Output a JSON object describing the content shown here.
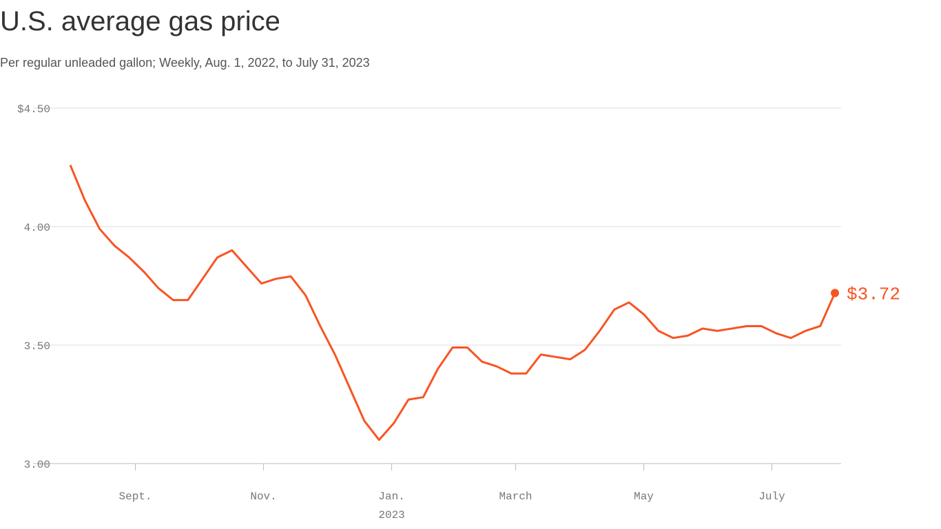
{
  "chart_data": {
    "type": "line",
    "title": "U.S. average gas price",
    "subtitle": "Per regular unleaded gallon; Weekly, Aug. 1, 2022, to July 31, 2023",
    "x": [
      "2022-08-01",
      "2022-08-08",
      "2022-08-15",
      "2022-08-22",
      "2022-08-29",
      "2022-09-05",
      "2022-09-12",
      "2022-09-19",
      "2022-09-26",
      "2022-10-03",
      "2022-10-10",
      "2022-10-17",
      "2022-10-24",
      "2022-10-31",
      "2022-11-07",
      "2022-11-14",
      "2022-11-21",
      "2022-11-28",
      "2022-12-05",
      "2022-12-12",
      "2022-12-19",
      "2022-12-26",
      "2023-01-02",
      "2023-01-09",
      "2023-01-16",
      "2023-01-23",
      "2023-01-30",
      "2023-02-06",
      "2023-02-13",
      "2023-02-20",
      "2023-02-27",
      "2023-03-06",
      "2023-03-13",
      "2023-03-20",
      "2023-03-27",
      "2023-04-03",
      "2023-04-10",
      "2023-04-17",
      "2023-04-24",
      "2023-05-01",
      "2023-05-08",
      "2023-05-15",
      "2023-05-22",
      "2023-05-29",
      "2023-06-05",
      "2023-06-12",
      "2023-06-19",
      "2023-06-26",
      "2023-07-03",
      "2023-07-10",
      "2023-07-17",
      "2023-07-24",
      "2023-07-31"
    ],
    "values": [
      4.26,
      4.11,
      3.99,
      3.92,
      3.87,
      3.81,
      3.74,
      3.69,
      3.69,
      3.78,
      3.87,
      3.9,
      3.83,
      3.76,
      3.78,
      3.79,
      3.71,
      3.58,
      3.46,
      3.32,
      3.18,
      3.1,
      3.17,
      3.27,
      3.28,
      3.4,
      3.49,
      3.49,
      3.43,
      3.41,
      3.38,
      3.38,
      3.46,
      3.45,
      3.44,
      3.48,
      3.56,
      3.65,
      3.68,
      3.63,
      3.56,
      3.53,
      3.54,
      3.57,
      3.56,
      3.57,
      3.58,
      3.58,
      3.55,
      3.53,
      3.56,
      3.58,
      3.72
    ],
    "value_labels": [
      null,
      null,
      null,
      null,
      null,
      null,
      null,
      null,
      null,
      null,
      null,
      null,
      null,
      null,
      null,
      null,
      null,
      null,
      null,
      null,
      null,
      null,
      null,
      null,
      null,
      null,
      null,
      null,
      null,
      null,
      null,
      null,
      null,
      null,
      null,
      null,
      null,
      null,
      null,
      null,
      null,
      null,
      null,
      null,
      null,
      null,
      null,
      null,
      null,
      null,
      null,
      null,
      "$3.72"
    ],
    "color": "#f75423",
    "xlim": [
      "2022-08-01",
      "2023-07-31"
    ],
    "xticks": [
      {
        "value": "2022-09-01",
        "label": "Sept."
      },
      {
        "value": "2022-11-01",
        "label": "Nov."
      },
      {
        "value": "2023-01-01",
        "label": "Jan.",
        "sublabel": "2023"
      },
      {
        "value": "2023-03-01",
        "label": "March"
      },
      {
        "value": "2023-05-01",
        "label": "May"
      },
      {
        "value": "2023-07-01",
        "label": "July"
      }
    ],
    "ylim": [
      3,
      4.5
    ],
    "yticks": [
      {
        "value": 3,
        "label": "3.00"
      },
      {
        "value": 3.5,
        "label": "3.50"
      },
      {
        "value": 4,
        "label": "4.00"
      },
      {
        "value": 4.5,
        "label": "$4.50"
      }
    ],
    "grid": true
  }
}
